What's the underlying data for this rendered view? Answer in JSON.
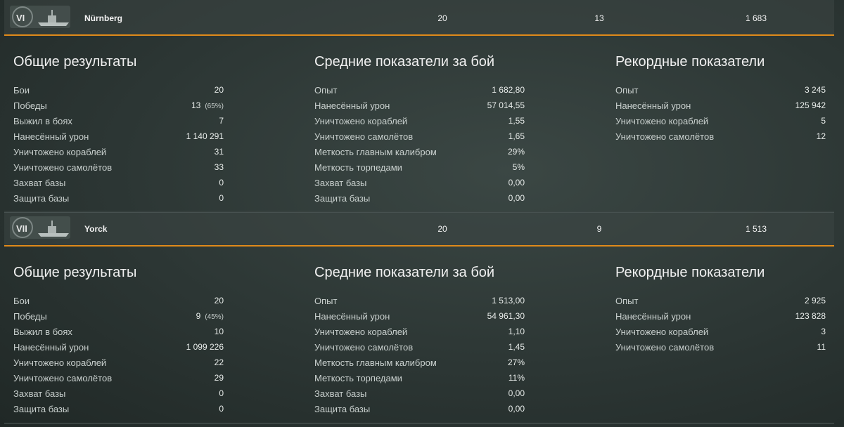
{
  "ships": [
    {
      "tier": "VI",
      "name": "Nürnberg",
      "header_values": [
        "20",
        "13",
        "1 683"
      ],
      "sections": [
        {
          "title": "Общие результаты",
          "rows": [
            {
              "label": "Бои",
              "value": "20"
            },
            {
              "label": "Победы",
              "value": "13",
              "note": "(65%)"
            },
            {
              "label": "Выжил в боях",
              "value": "7"
            },
            {
              "label": "Нанесённый урон",
              "value": "1 140 291"
            },
            {
              "label": "Уничтожено кораблей",
              "value": "31"
            },
            {
              "label": "Уничтожено самолётов",
              "value": "33"
            },
            {
              "label": "Захват базы",
              "value": "0"
            },
            {
              "label": "Защита базы",
              "value": "0"
            }
          ]
        },
        {
          "title": "Средние показатели за бой",
          "rows": [
            {
              "label": "Опыт",
              "value": "1 682,80"
            },
            {
              "label": "Нанесённый урон",
              "value": "57 014,55"
            },
            {
              "label": "Уничтожено кораблей",
              "value": "1,55"
            },
            {
              "label": "Уничтожено самолётов",
              "value": "1,65"
            },
            {
              "label": "Меткость главным калибром",
              "value": "29%"
            },
            {
              "label": "Меткость торпедами",
              "value": "5%"
            },
            {
              "label": "Захват базы",
              "value": "0,00"
            },
            {
              "label": "Защита базы",
              "value": "0,00"
            }
          ]
        },
        {
          "title": "Рекордные показатели",
          "rows": [
            {
              "label": "Опыт",
              "value": "3 245"
            },
            {
              "label": "Нанесённый урон",
              "value": "125 942"
            },
            {
              "label": "Уничтожено кораблей",
              "value": "5"
            },
            {
              "label": "Уничтожено самолётов",
              "value": "12"
            }
          ]
        }
      ]
    },
    {
      "tier": "VII",
      "name": "Yorck",
      "header_values": [
        "20",
        "9",
        "1 513"
      ],
      "sections": [
        {
          "title": "Общие результаты",
          "rows": [
            {
              "label": "Бои",
              "value": "20"
            },
            {
              "label": "Победы",
              "value": "9",
              "note": "(45%)"
            },
            {
              "label": "Выжил в боях",
              "value": "10"
            },
            {
              "label": "Нанесённый урон",
              "value": "1 099 226"
            },
            {
              "label": "Уничтожено кораблей",
              "value": "22"
            },
            {
              "label": "Уничтожено самолётов",
              "value": "29"
            },
            {
              "label": "Захват базы",
              "value": "0"
            },
            {
              "label": "Защита базы",
              "value": "0"
            }
          ]
        },
        {
          "title": "Средние показатели за бой",
          "rows": [
            {
              "label": "Опыт",
              "value": "1 513,00"
            },
            {
              "label": "Нанесённый урон",
              "value": "54 961,30"
            },
            {
              "label": "Уничтожено кораблей",
              "value": "1,10"
            },
            {
              "label": "Уничтожено самолётов",
              "value": "1,45"
            },
            {
              "label": "Меткость главным калибром",
              "value": "27%"
            },
            {
              "label": "Меткость торпедами",
              "value": "11%"
            },
            {
              "label": "Захват базы",
              "value": "0,00"
            },
            {
              "label": "Защита базы",
              "value": "0,00"
            }
          ]
        },
        {
          "title": "Рекордные показатели",
          "rows": [
            {
              "label": "Опыт",
              "value": "2 925"
            },
            {
              "label": "Нанесённый урон",
              "value": "123 828"
            },
            {
              "label": "Уничтожено кораблей",
              "value": "3"
            },
            {
              "label": "Уничтожено самолётов",
              "value": "11"
            }
          ]
        }
      ]
    }
  ]
}
